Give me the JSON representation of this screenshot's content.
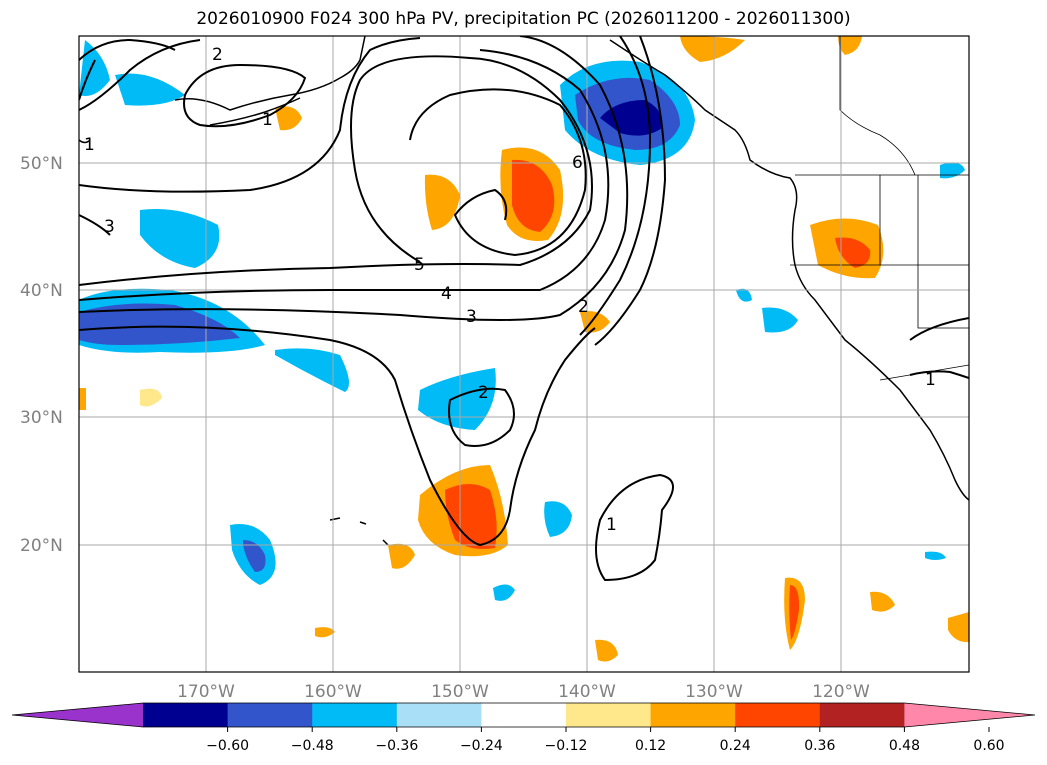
{
  "title": "2026010900 F024 300 hPa PV, precipitation PC (2026011200 - 2026011300)",
  "map": {
    "lat_ticks": [
      "50°N",
      "40°N",
      "30°N",
      "20°N"
    ],
    "lon_ticks": [
      "170°W",
      "160°W",
      "150°W",
      "140°W",
      "130°W",
      "120°W"
    ],
    "grid": true
  },
  "pv_contour_labels": [
    "2",
    "1",
    "3",
    "6",
    "5",
    "4",
    "3",
    "2",
    "2",
    "1",
    "1",
    "1"
  ],
  "colorbar": {
    "extend": "both",
    "colors": [
      "#9933cc",
      "#000090",
      "#3355cc",
      "#00bbf5",
      "#aadff8",
      "#ffffff",
      "#ffe88c",
      "#ffa500",
      "#ff4500",
      "#b22222",
      "#ff88aa"
    ],
    "tick_labels": [
      "−0.60",
      "−0.48",
      "−0.36",
      "−0.24",
      "−0.12",
      "0.12",
      "0.24",
      "0.36",
      "0.48",
      "0.60"
    ]
  }
}
